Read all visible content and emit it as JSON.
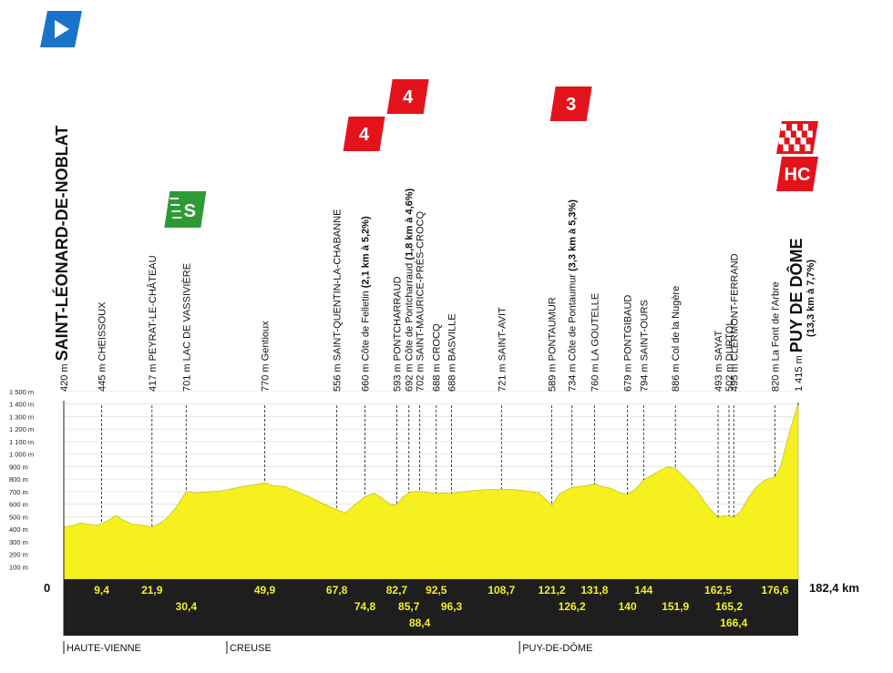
{
  "chart_data": {
    "type": "area",
    "total_distance": 182.4,
    "distance_label": "182,4 km",
    "origin_label": "0",
    "ylim": [
      0,
      1500
    ],
    "y_ticks": [
      {
        "value": 100,
        "label": "100 m"
      },
      {
        "value": 200,
        "label": "200 m"
      },
      {
        "value": 300,
        "label": "300 m"
      },
      {
        "value": 400,
        "label": "400 m"
      },
      {
        "value": 500,
        "label": "500 m"
      },
      {
        "value": 600,
        "label": "600 m"
      },
      {
        "value": 700,
        "label": "700 m"
      },
      {
        "value": 800,
        "label": "800 m"
      },
      {
        "value": 900,
        "label": "900 m"
      },
      {
        "value": 1000,
        "label": "1 000 m"
      },
      {
        "value": 1100,
        "label": "1 100 m"
      },
      {
        "value": 1200,
        "label": "1 200 m"
      },
      {
        "value": 1300,
        "label": "1 300 m"
      },
      {
        "value": 1400,
        "label": "1 400 m"
      },
      {
        "value": 1500,
        "label": "1 500 m"
      }
    ],
    "colors": {
      "profile_fill": "#f5f01e",
      "band": "#1e1e1e",
      "km_text": "#f5f01e",
      "category_red": "#e3131b",
      "sprint_green": "#2e9a36",
      "start_blue": "#1a73c8"
    },
    "profile": {
      "x": [
        0,
        2,
        4,
        6,
        8,
        9.4,
        11,
        13,
        15,
        17,
        19,
        21.9,
        24,
        26,
        28,
        30.4,
        33,
        36,
        40,
        44,
        48,
        49.9,
        52,
        55,
        58,
        61,
        64,
        67.8,
        70,
        72,
        74.8,
        77,
        79,
        81,
        82.7,
        84,
        85.7,
        87,
        88.4,
        90,
        92.5,
        94,
        96.3,
        99,
        102,
        105,
        108.7,
        112,
        115,
        118,
        121.2,
        123,
        126.2,
        129,
        131.8,
        134,
        136,
        138,
        140,
        142,
        144,
        146,
        148,
        150,
        151.9,
        154,
        157,
        160,
        162.5,
        164,
        165.2,
        166.4,
        168,
        170,
        172,
        174,
        176.6,
        178,
        180,
        182.4
      ],
      "y": [
        420,
        425,
        450,
        440,
        430,
        445,
        470,
        510,
        470,
        440,
        435,
        417,
        450,
        500,
        580,
        701,
        690,
        700,
        710,
        740,
        760,
        770,
        750,
        740,
        700,
        660,
        610,
        556,
        530,
        590,
        660,
        690,
        650,
        600,
        593,
        650,
        692,
        700,
        702,
        695,
        688,
        690,
        688,
        700,
        710,
        715,
        721,
        715,
        705,
        690,
        589,
        680,
        734,
        745,
        760,
        740,
        725,
        690,
        679,
        720,
        794,
        830,
        870,
        900,
        886,
        820,
        720,
        580,
        493,
        510,
        502,
        495,
        540,
        650,
        740,
        790,
        820,
        900,
        1150,
        1415
      ]
    },
    "waypoints": [
      {
        "km": 0,
        "alt": "420 m",
        "name": "SAINT-LÉONARD-DE-NOBLAT",
        "style": "start",
        "row": 0
      },
      {
        "km": 9.4,
        "alt": "445 m",
        "name": "CHEISSOUX",
        "row": 0
      },
      {
        "km": 21.9,
        "alt": "417 m",
        "name": "PEYRAT-LE-CHÂTEAU",
        "row": 0
      },
      {
        "km": 30.4,
        "alt": "701 m",
        "name": "LAC DE VASSIVIÈRE",
        "row": 1
      },
      {
        "km": 49.9,
        "alt": "770 m",
        "name": "Gentioux",
        "row": 0
      },
      {
        "km": 67.8,
        "alt": "556 m",
        "name": "SAINT-QUENTIN-LA-CHABANNE",
        "row": 0
      },
      {
        "km": 74.8,
        "alt": "660 m",
        "name": "Côte de Felletin",
        "note": "(2,1 km à 5,2%)",
        "row": 1
      },
      {
        "km": 82.7,
        "alt": "593 m",
        "name": "PONTCHARRAUD",
        "row": 0
      },
      {
        "km": 85.7,
        "alt": "692 m",
        "name": "Côte de Pontcharraud",
        "note": "(1,8 km à 4,6%)",
        "row": 1
      },
      {
        "km": 88.4,
        "alt": "702 m",
        "name": "SAINT-MAURICE-PRÈS-CROCQ",
        "row": 2
      },
      {
        "km": 92.5,
        "alt": "688 m",
        "name": "CROCQ",
        "row": 0
      },
      {
        "km": 96.3,
        "alt": "688 m",
        "name": "BASVILLE",
        "row": 1
      },
      {
        "km": 108.7,
        "alt": "721 m",
        "name": "SAINT-AVIT",
        "row": 0
      },
      {
        "km": 121.2,
        "alt": "589 m",
        "name": "PONTAUMUR",
        "row": 0
      },
      {
        "km": 126.2,
        "alt": "734 m",
        "name": "Côte de Pontaumur",
        "note": "(3,3 km à 5,3%)",
        "row": 1
      },
      {
        "km": 131.8,
        "alt": "760 m",
        "name": "LA GOUTELLE",
        "row": 0
      },
      {
        "km": 140,
        "alt": "679 m",
        "name": "PONTGIBAUD",
        "row": 1
      },
      {
        "km": 144,
        "alt": "794 m",
        "name": "SAINT-OURS",
        "row": 0
      },
      {
        "km": 151.9,
        "alt": "886 m",
        "name": "Col de la Nugère",
        "row": 1
      },
      {
        "km": 162.5,
        "alt": "493 m",
        "name": "SAYAT",
        "row": 0
      },
      {
        "km": 165.2,
        "alt": "502 m",
        "name": "DURTOL",
        "row": 1
      },
      {
        "km": 166.4,
        "alt": "495 m",
        "name": "CLERMONT-FERRAND",
        "row": 2
      },
      {
        "km": 176.6,
        "alt": "820 m",
        "name": "La Font de l'Arbre",
        "row": 0
      },
      {
        "km": 182.4,
        "alt": "1 415 m",
        "name": "PUY DE DÔME",
        "note": "(13,3 km à 7,7%)",
        "style": "finish",
        "row": 0
      }
    ],
    "km_labels": [
      {
        "km": 9.4,
        "label": "9,4",
        "row": 0
      },
      {
        "km": 21.9,
        "label": "21,9",
        "row": 0
      },
      {
        "km": 30.4,
        "label": "30,4",
        "row": 1
      },
      {
        "km": 49.9,
        "label": "49,9",
        "row": 0
      },
      {
        "km": 67.8,
        "label": "67,8",
        "row": 0
      },
      {
        "km": 74.8,
        "label": "74,8",
        "row": 1
      },
      {
        "km": 82.7,
        "label": "82,7",
        "row": 0
      },
      {
        "km": 85.7,
        "label": "85,7",
        "row": 1
      },
      {
        "km": 88.4,
        "label": "88,4",
        "row": 2
      },
      {
        "km": 92.5,
        "label": "92,5",
        "row": 0
      },
      {
        "km": 96.3,
        "label": "96,3",
        "row": 1
      },
      {
        "km": 108.7,
        "label": "108,7",
        "row": 0
      },
      {
        "km": 121.2,
        "label": "121,2",
        "row": 0
      },
      {
        "km": 126.2,
        "label": "126,2",
        "row": 1
      },
      {
        "km": 131.8,
        "label": "131,8",
        "row": 0
      },
      {
        "km": 140,
        "label": "140",
        "row": 1
      },
      {
        "km": 144,
        "label": "144",
        "row": 0
      },
      {
        "km": 151.9,
        "label": "151,9",
        "row": 1
      },
      {
        "km": 162.5,
        "label": "162,5",
        "row": 0
      },
      {
        "km": 165.2,
        "label": "165,2",
        "row": 1
      },
      {
        "km": 166.4,
        "label": "166,4",
        "row": 2
      },
      {
        "km": 176.6,
        "label": "176,6",
        "row": 0
      }
    ],
    "badges": [
      {
        "km": 0,
        "type": "start-flag"
      },
      {
        "km": 30.4,
        "type": "sprint",
        "label": "S"
      },
      {
        "km": 74.8,
        "type": "category",
        "label": "4"
      },
      {
        "km": 85.7,
        "type": "category",
        "label": "4"
      },
      {
        "km": 126.2,
        "type": "category",
        "label": "3"
      },
      {
        "km": 182.4,
        "type": "finish-flag"
      },
      {
        "km": 182.4,
        "type": "category",
        "label": "HC"
      }
    ],
    "regions": [
      {
        "km": 0,
        "label": "HAUTE-VIENNE"
      },
      {
        "km": 40.5,
        "label": "CREUSE"
      },
      {
        "km": 113.2,
        "label": "PUY-DE-DÔME"
      }
    ]
  }
}
